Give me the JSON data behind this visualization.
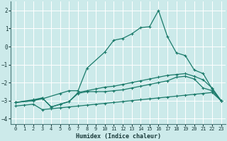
{
  "xlabel": "Humidex (Indice chaleur)",
  "bg_color": "#cceaea",
  "grid_color": "#ffffff",
  "line_color": "#1a7a6a",
  "xlim": [
    -0.5,
    23.5
  ],
  "ylim": [
    -4.3,
    2.5
  ],
  "yticks": [
    -4,
    -3,
    -2,
    -1,
    0,
    1,
    2
  ],
  "xticks": [
    0,
    1,
    2,
    3,
    4,
    5,
    6,
    7,
    8,
    9,
    10,
    11,
    12,
    13,
    14,
    15,
    16,
    17,
    18,
    19,
    20,
    21,
    22,
    23
  ],
  "line_main_x": [
    0,
    2,
    3,
    5,
    6,
    7,
    8,
    10,
    11,
    12,
    13,
    14,
    15,
    16,
    17,
    18,
    19,
    20,
    21,
    22,
    23
  ],
  "line_main_y": [
    -3.1,
    -3.0,
    -2.9,
    -2.6,
    -2.45,
    -2.45,
    -1.2,
    -0.3,
    0.35,
    0.45,
    0.7,
    1.05,
    1.1,
    2.0,
    0.55,
    -0.35,
    -0.5,
    -1.3,
    -1.5,
    -2.35,
    -3.0
  ],
  "line_mid_x": [
    0,
    2,
    3,
    4,
    5,
    6,
    7,
    8,
    9,
    10,
    11,
    12,
    13,
    14,
    15,
    16,
    17,
    18,
    19,
    20,
    21,
    22,
    23
  ],
  "line_mid_y": [
    -3.1,
    -3.0,
    -2.85,
    -3.35,
    -3.2,
    -3.05,
    -2.6,
    -2.5,
    -2.5,
    -2.5,
    -2.45,
    -2.4,
    -2.3,
    -2.2,
    -2.1,
    -2.0,
    -1.9,
    -1.7,
    -1.65,
    -1.8,
    -2.3,
    -2.45,
    -3.0
  ],
  "line_upper_x": [
    0,
    2,
    3,
    4,
    5,
    6,
    7,
    8,
    9,
    10,
    11,
    12,
    13,
    14,
    15,
    16,
    17,
    18,
    19,
    20,
    21,
    22,
    23
  ],
  "line_upper_y": [
    -3.1,
    -2.95,
    -2.85,
    -3.35,
    -3.2,
    -3.05,
    -2.55,
    -2.45,
    -2.35,
    -2.25,
    -2.2,
    -2.1,
    -2.0,
    -1.9,
    -1.8,
    -1.7,
    -1.6,
    -1.55,
    -1.5,
    -1.65,
    -1.85,
    -2.3,
    -3.0
  ],
  "line_low_x": [
    0,
    1,
    2,
    3,
    4,
    5,
    6,
    7,
    8,
    9,
    10,
    11,
    12,
    13,
    14,
    15,
    16,
    17,
    18,
    19,
    20,
    21,
    22,
    23
  ],
  "line_low_y": [
    -3.3,
    -3.25,
    -3.2,
    -3.5,
    -3.45,
    -3.4,
    -3.35,
    -3.3,
    -3.25,
    -3.2,
    -3.15,
    -3.1,
    -3.05,
    -3.0,
    -2.95,
    -2.9,
    -2.85,
    -2.8,
    -2.75,
    -2.7,
    -2.65,
    -2.6,
    -2.55,
    -3.0
  ]
}
